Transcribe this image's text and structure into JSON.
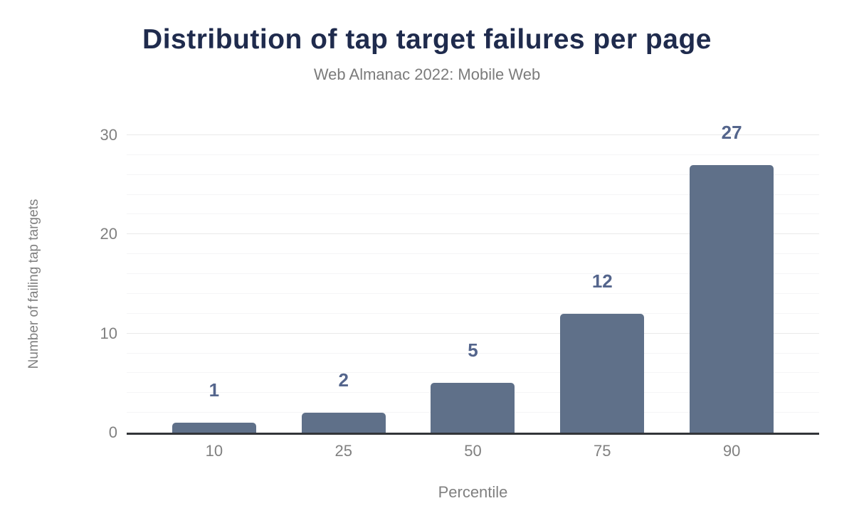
{
  "chart_data": {
    "type": "bar",
    "title": "Distribution of tap target failures per page",
    "subtitle": "Web Almanac 2022: Mobile Web",
    "categories": [
      "10",
      "25",
      "50",
      "75",
      "90"
    ],
    "values": [
      1,
      2,
      5,
      12,
      27
    ],
    "xlabel": "Percentile",
    "ylabel": "Number of failing tap targets",
    "ylim": [
      0,
      30
    ],
    "y_major_ticks": [
      0,
      10,
      20,
      30
    ],
    "y_minor_step": 2,
    "grid": true,
    "legend_position": "none",
    "colors": {
      "bar": "#5f7089",
      "data_label": "#54658c",
      "title": "#1f2b4d",
      "subtitle": "#7b7b7b",
      "tick_label": "#808080",
      "axis_line": "#323539",
      "grid_major": "#e9e9e9",
      "grid_minor": "#f5f5f6"
    }
  }
}
